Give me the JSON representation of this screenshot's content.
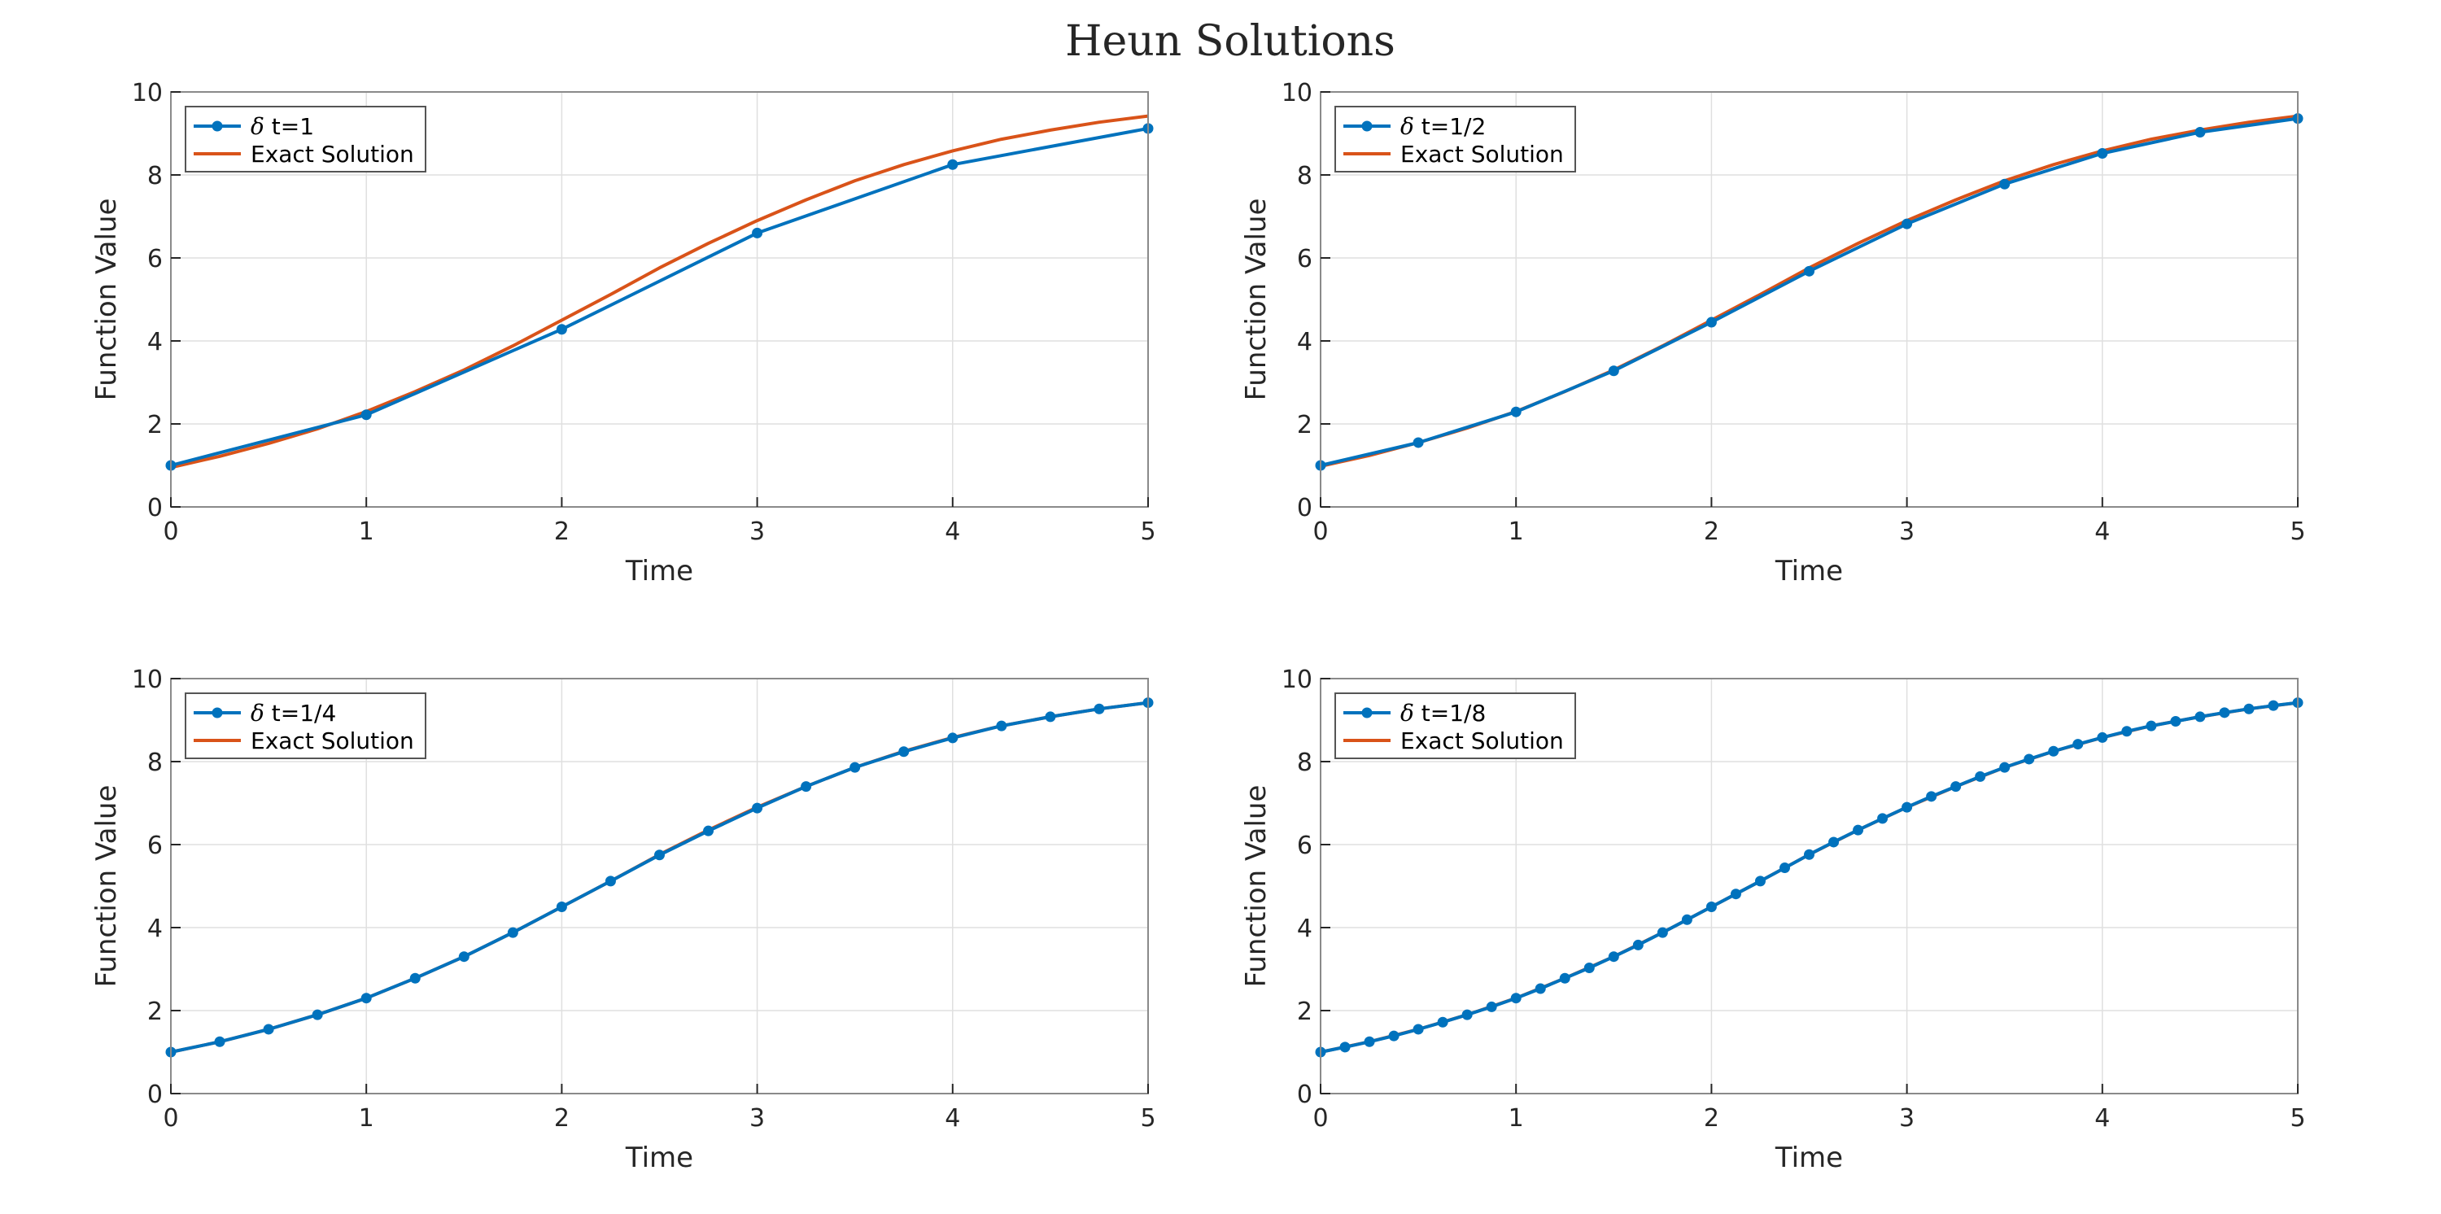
{
  "figure": {
    "title": "Heun Solutions"
  },
  "colors": {
    "approx": "#0072bd",
    "exact": "#d95319"
  },
  "chart_data": [
    {
      "type": "line",
      "xlabel": "Time",
      "ylabel": "Function Value",
      "xlim": [
        0,
        5
      ],
      "ylim": [
        0,
        10
      ],
      "xticks": [
        0,
        1,
        2,
        3,
        4,
        5
      ],
      "yticks": [
        0,
        2,
        4,
        6,
        8,
        10
      ],
      "grid": true,
      "legend_position": "top-left",
      "legend": [
        {
          "prefix": "δ",
          "label": " t=1"
        },
        {
          "prefix": "",
          "label": "Exact Solution"
        }
      ],
      "approx": {
        "x": [
          0,
          1,
          2,
          3,
          4,
          5
        ],
        "y": [
          1.0,
          2.22,
          4.28,
          6.6,
          8.25,
          9.12
        ]
      },
      "exact": {
        "x": [
          0,
          0.25,
          0.5,
          0.75,
          1,
          1.25,
          1.5,
          1.75,
          2,
          2.25,
          2.5,
          2.75,
          3,
          3.25,
          3.5,
          3.75,
          4,
          4.25,
          4.5,
          4.75,
          5
        ],
        "y": [
          0.95,
          1.22,
          1.53,
          1.88,
          2.3,
          2.78,
          3.3,
          3.88,
          4.5,
          5.12,
          5.76,
          6.35,
          6.9,
          7.4,
          7.86,
          8.25,
          8.58,
          8.86,
          9.08,
          9.27,
          9.42
        ]
      }
    },
    {
      "type": "line",
      "xlabel": "Time",
      "ylabel": "Function Value",
      "xlim": [
        0,
        5
      ],
      "ylim": [
        0,
        10
      ],
      "xticks": [
        0,
        1,
        2,
        3,
        4,
        5
      ],
      "yticks": [
        0,
        2,
        4,
        6,
        8,
        10
      ],
      "grid": true,
      "legend_position": "top-left",
      "legend": [
        {
          "prefix": "δ",
          "label": " t=1/2"
        },
        {
          "prefix": "",
          "label": "Exact Solution"
        }
      ],
      "approx": {
        "x": [
          0,
          0.5,
          1,
          1.5,
          2,
          2.5,
          3,
          3.5,
          4,
          4.5,
          5
        ],
        "y": [
          1.0,
          1.55,
          2.29,
          3.28,
          4.45,
          5.68,
          6.82,
          7.78,
          8.52,
          9.03,
          9.36
        ]
      },
      "exact": {
        "x": [
          0,
          0.25,
          0.5,
          0.75,
          1,
          1.25,
          1.5,
          1.75,
          2,
          2.25,
          2.5,
          2.75,
          3,
          3.25,
          3.5,
          3.75,
          4,
          4.25,
          4.5,
          4.75,
          5
        ],
        "y": [
          0.98,
          1.24,
          1.55,
          1.9,
          2.3,
          2.78,
          3.3,
          3.88,
          4.5,
          5.12,
          5.76,
          6.35,
          6.9,
          7.4,
          7.86,
          8.25,
          8.58,
          8.86,
          9.08,
          9.27,
          9.42
        ]
      }
    },
    {
      "type": "line",
      "xlabel": "Time",
      "ylabel": "Function Value",
      "xlim": [
        0,
        5
      ],
      "ylim": [
        0,
        10
      ],
      "xticks": [
        0,
        1,
        2,
        3,
        4,
        5
      ],
      "yticks": [
        0,
        2,
        4,
        6,
        8,
        10
      ],
      "grid": true,
      "legend_position": "top-left",
      "legend": [
        {
          "prefix": "δ",
          "label": " t=1/4"
        },
        {
          "prefix": "",
          "label": "Exact Solution"
        }
      ],
      "approx": {
        "x": [
          0,
          0.25,
          0.5,
          0.75,
          1,
          1.25,
          1.5,
          1.75,
          2,
          2.25,
          2.5,
          2.75,
          3,
          3.25,
          3.5,
          3.75,
          4,
          4.25,
          4.5,
          4.75,
          5
        ],
        "y": [
          1.0,
          1.25,
          1.55,
          1.9,
          2.3,
          2.78,
          3.3,
          3.88,
          4.5,
          5.12,
          5.75,
          6.33,
          6.88,
          7.4,
          7.86,
          8.24,
          8.57,
          8.86,
          9.08,
          9.27,
          9.42
        ]
      },
      "exact": {
        "x": [
          0,
          0.25,
          0.5,
          0.75,
          1,
          1.25,
          1.5,
          1.75,
          2,
          2.25,
          2.5,
          2.75,
          3,
          3.25,
          3.5,
          3.75,
          4,
          4.25,
          4.5,
          4.75,
          5
        ],
        "y": [
          1.0,
          1.25,
          1.55,
          1.9,
          2.3,
          2.78,
          3.3,
          3.88,
          4.5,
          5.12,
          5.76,
          6.35,
          6.9,
          7.4,
          7.86,
          8.25,
          8.58,
          8.86,
          9.08,
          9.27,
          9.42
        ]
      }
    },
    {
      "type": "line",
      "xlabel": "Time",
      "ylabel": "Function Value",
      "xlim": [
        0,
        5
      ],
      "ylim": [
        0,
        10
      ],
      "xticks": [
        0,
        1,
        2,
        3,
        4,
        5
      ],
      "yticks": [
        0,
        2,
        4,
        6,
        8,
        10
      ],
      "grid": true,
      "legend_position": "top-left",
      "legend": [
        {
          "prefix": "δ",
          "label": " t=1/8"
        },
        {
          "prefix": "",
          "label": "Exact Solution"
        }
      ],
      "approx": {
        "x": [
          0,
          0.125,
          0.25,
          0.375,
          0.5,
          0.625,
          0.75,
          0.875,
          1,
          1.125,
          1.25,
          1.375,
          1.5,
          1.625,
          1.75,
          1.875,
          2,
          2.125,
          2.25,
          2.375,
          2.5,
          2.625,
          2.75,
          2.875,
          3,
          3.125,
          3.25,
          3.375,
          3.5,
          3.625,
          3.75,
          3.875,
          4,
          4.125,
          4.25,
          4.375,
          4.5,
          4.625,
          4.75,
          4.875,
          5
        ],
        "y": [
          1.0,
          1.12,
          1.25,
          1.39,
          1.55,
          1.72,
          1.9,
          2.09,
          2.3,
          2.53,
          2.78,
          3.03,
          3.3,
          3.58,
          3.88,
          4.19,
          4.5,
          4.81,
          5.12,
          5.44,
          5.76,
          6.06,
          6.35,
          6.63,
          6.9,
          7.16,
          7.4,
          7.64,
          7.86,
          8.06,
          8.25,
          8.42,
          8.58,
          8.73,
          8.86,
          8.97,
          9.08,
          9.18,
          9.27,
          9.35,
          9.42
        ]
      },
      "exact": {
        "x": [
          0,
          0.25,
          0.5,
          0.75,
          1,
          1.25,
          1.5,
          1.75,
          2,
          2.25,
          2.5,
          2.75,
          3,
          3.25,
          3.5,
          3.75,
          4,
          4.25,
          4.5,
          4.75,
          5
        ],
        "y": [
          1.0,
          1.25,
          1.55,
          1.9,
          2.3,
          2.78,
          3.3,
          3.88,
          4.5,
          5.12,
          5.76,
          6.35,
          6.9,
          7.4,
          7.86,
          8.25,
          8.58,
          8.86,
          9.08,
          9.27,
          9.42
        ]
      }
    }
  ]
}
